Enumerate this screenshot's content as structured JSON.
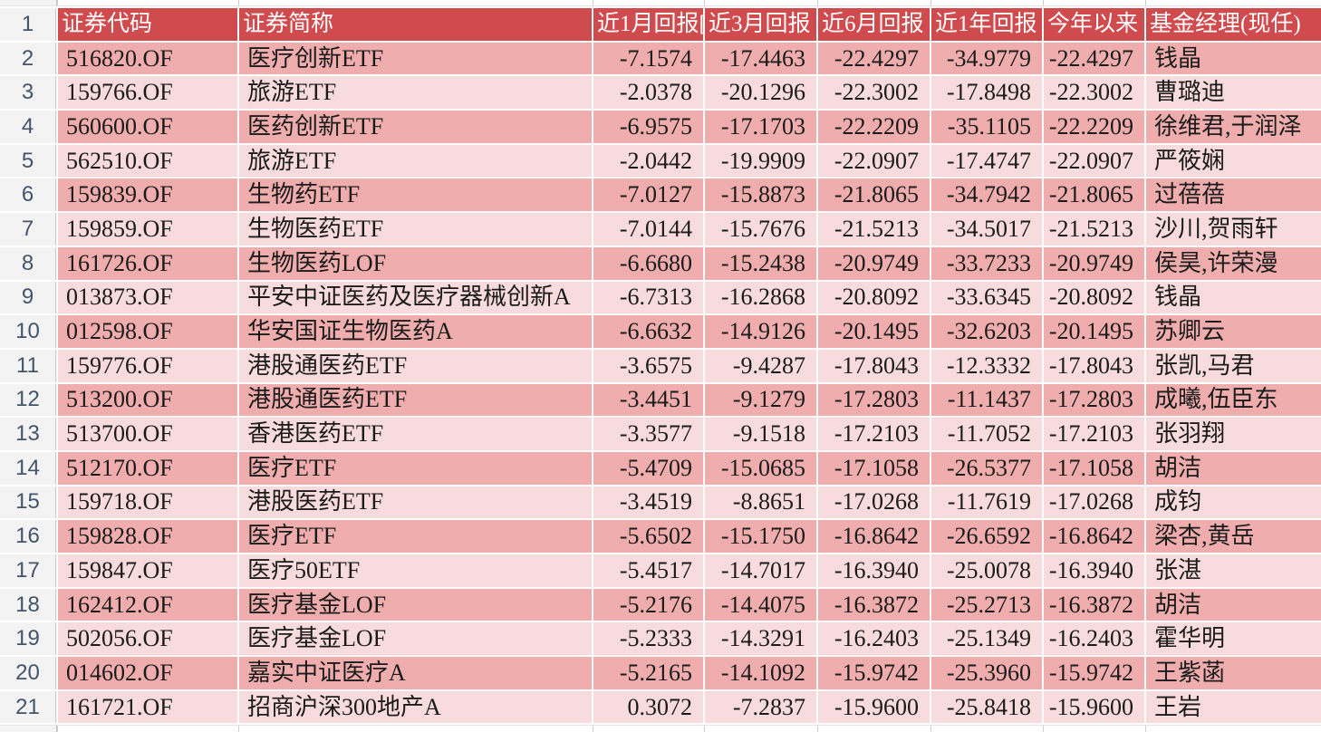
{
  "table": {
    "header_row_number": "1",
    "columns": [
      {
        "key": "code",
        "label": "证券代码",
        "align": "left"
      },
      {
        "key": "name",
        "label": "证券简称",
        "align": "left"
      },
      {
        "key": "r1m",
        "label": "近1月回报[",
        "align": "right"
      },
      {
        "key": "r3m",
        "label": "近3月回报",
        "align": "right"
      },
      {
        "key": "r6m",
        "label": "近6月回报",
        "align": "right"
      },
      {
        "key": "r1y",
        "label": "近1年回报",
        "align": "right"
      },
      {
        "key": "ytd",
        "label": "今年以来",
        "align": "right"
      },
      {
        "key": "mgr",
        "label": "基金经理(现任)",
        "align": "left"
      }
    ],
    "rows": [
      {
        "num": "2",
        "cells": [
          "516820.OF",
          "医疗创新ETF",
          "-7.1574",
          "-17.4463",
          "-22.4297",
          "-34.9779",
          "-22.4297",
          "钱晶"
        ]
      },
      {
        "num": "3",
        "cells": [
          "159766.OF",
          "旅游ETF",
          "-2.0378",
          "-20.1296",
          "-22.3002",
          "-17.8498",
          "-22.3002",
          "曹璐迪"
        ]
      },
      {
        "num": "4",
        "cells": [
          "560600.OF",
          "医药创新ETF",
          "-6.9575",
          "-17.1703",
          "-22.2209",
          "-35.1105",
          "-22.2209",
          "徐维君,于润泽"
        ]
      },
      {
        "num": "5",
        "cells": [
          "562510.OF",
          "旅游ETF",
          "-2.0442",
          "-19.9909",
          "-22.0907",
          "-17.4747",
          "-22.0907",
          "严筱娴"
        ]
      },
      {
        "num": "6",
        "cells": [
          "159839.OF",
          "生物药ETF",
          "-7.0127",
          "-15.8873",
          "-21.8065",
          "-34.7942",
          "-21.8065",
          "过蓓蓓"
        ]
      },
      {
        "num": "7",
        "cells": [
          "159859.OF",
          "生物医药ETF",
          "-7.0144",
          "-15.7676",
          "-21.5213",
          "-34.5017",
          "-21.5213",
          "沙川,贺雨轩"
        ]
      },
      {
        "num": "8",
        "cells": [
          "161726.OF",
          "生物医药LOF",
          "-6.6680",
          "-15.2438",
          "-20.9749",
          "-33.7233",
          "-20.9749",
          "侯昊,许荣漫"
        ]
      },
      {
        "num": "9",
        "cells": [
          "013873.OF",
          "平安中证医药及医疗器械创新A",
          "-6.7313",
          "-16.2868",
          "-20.8092",
          "-33.6345",
          "-20.8092",
          "钱晶"
        ]
      },
      {
        "num": "10",
        "cells": [
          "012598.OF",
          "华安国证生物医药A",
          "-6.6632",
          "-14.9126",
          "-20.1495",
          "-32.6203",
          "-20.1495",
          "苏卿云"
        ]
      },
      {
        "num": "11",
        "cells": [
          "159776.OF",
          "港股通医药ETF",
          "-3.6575",
          "-9.4287",
          "-17.8043",
          "-12.3332",
          "-17.8043",
          "张凯,马君"
        ]
      },
      {
        "num": "12",
        "cells": [
          "513200.OF",
          "港股通医药ETF",
          "-3.4451",
          "-9.1279",
          "-17.2803",
          "-11.1437",
          "-17.2803",
          "成曦,伍臣东"
        ]
      },
      {
        "num": "13",
        "cells": [
          "513700.OF",
          "香港医药ETF",
          "-3.3577",
          "-9.1518",
          "-17.2103",
          "-11.7052",
          "-17.2103",
          "张羽翔"
        ]
      },
      {
        "num": "14",
        "cells": [
          "512170.OF",
          "医疗ETF",
          "-5.4709",
          "-15.0685",
          "-17.1058",
          "-26.5377",
          "-17.1058",
          "胡洁"
        ]
      },
      {
        "num": "15",
        "cells": [
          "159718.OF",
          "港股医药ETF",
          "-3.4519",
          "-8.8651",
          "-17.0268",
          "-11.7619",
          "-17.0268",
          "成钧"
        ]
      },
      {
        "num": "16",
        "cells": [
          "159828.OF",
          "医疗ETF",
          "-5.6502",
          "-15.1750",
          "-16.8642",
          "-26.6592",
          "-16.8642",
          "梁杏,黄岳"
        ]
      },
      {
        "num": "17",
        "cells": [
          "159847.OF",
          "医疗50ETF",
          "-5.4517",
          "-14.7017",
          "-16.3940",
          "-25.0078",
          "-16.3940",
          "张湛"
        ]
      },
      {
        "num": "18",
        "cells": [
          "162412.OF",
          "医疗基金LOF",
          "-5.2176",
          "-14.4075",
          "-16.3872",
          "-25.2713",
          "-16.3872",
          "胡洁"
        ]
      },
      {
        "num": "19",
        "cells": [
          "502056.OF",
          "医疗基金LOF",
          "-5.2333",
          "-14.3291",
          "-16.2403",
          "-25.1349",
          "-16.2403",
          "霍华明"
        ]
      },
      {
        "num": "20",
        "cells": [
          "014602.OF",
          "嘉实中证医疗A",
          "-5.2165",
          "-14.1092",
          "-15.9742",
          "-25.3960",
          "-15.9742",
          "王紫菡"
        ]
      },
      {
        "num": "21",
        "cells": [
          "161721.OF",
          "招商沪深300地产A",
          "0.3072",
          "-7.2837",
          "-15.9600",
          "-25.8418",
          "-15.9600",
          "王岩"
        ]
      }
    ]
  },
  "colors": {
    "header_bg": "#CF4B4E",
    "header_text": "#FFFFFF",
    "row_dark": "#EFADAE",
    "row_light": "#F8DBDC",
    "gutter_bg": "#F3F3F4",
    "gutter_text": "#44546A"
  }
}
